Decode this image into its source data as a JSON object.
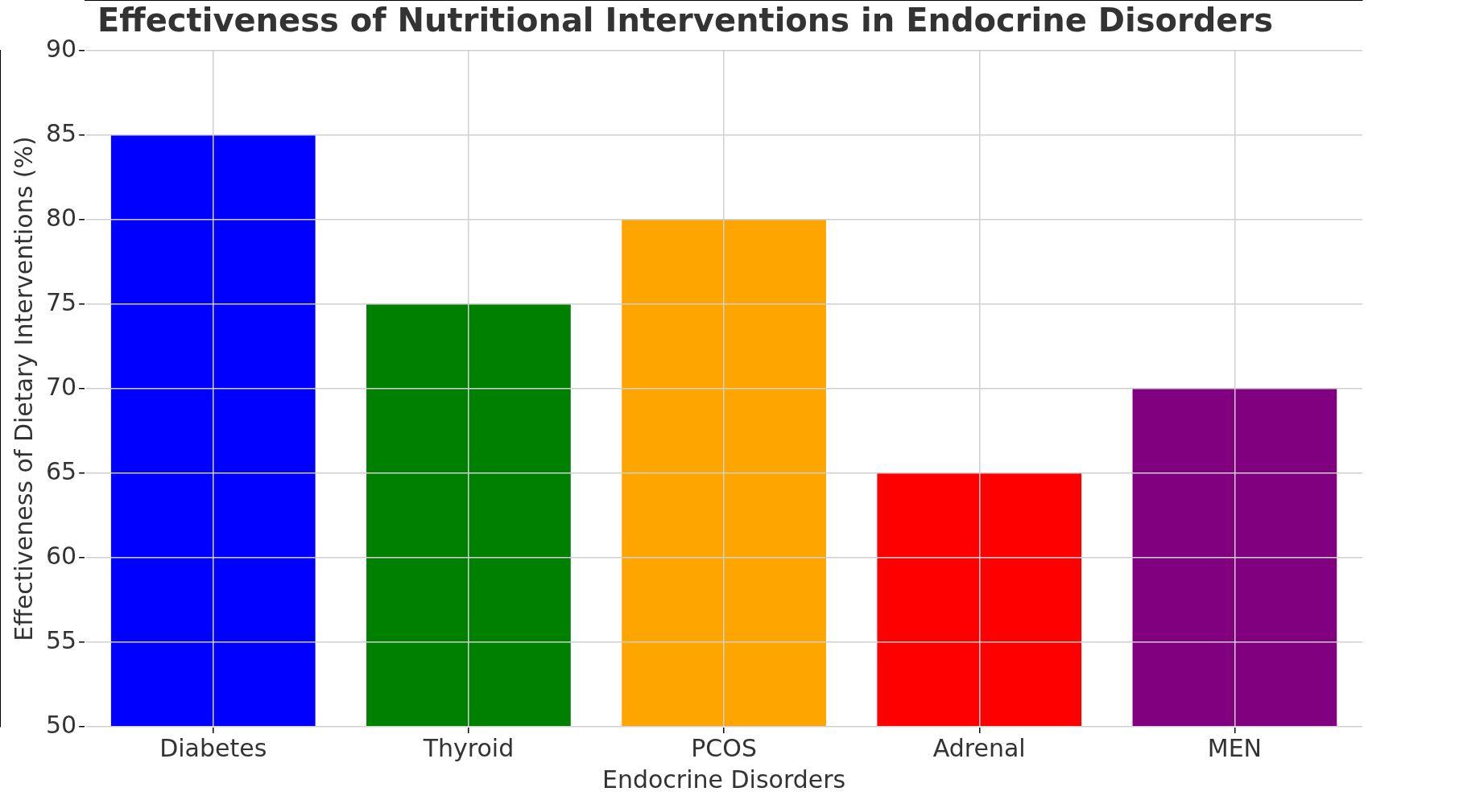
{
  "chart_data": {
    "type": "bar",
    "title": "Effectiveness of Nutritional Interventions in Endocrine Disorders",
    "xlabel": "Endocrine Disorders",
    "ylabel": "Effectiveness of Dietary Interventions (%)",
    "categories": [
      "Diabetes",
      "Thyroid",
      "PCOS",
      "Adrenal",
      "MEN"
    ],
    "values": [
      85,
      75,
      80,
      65,
      70
    ],
    "colors": [
      "#0000ff",
      "#008000",
      "#ffa500",
      "#ff0000",
      "#800080"
    ],
    "ylim": [
      50,
      90
    ],
    "yticks": [
      50,
      55,
      60,
      65,
      70,
      75,
      80,
      85,
      90
    ],
    "grid": true
  }
}
